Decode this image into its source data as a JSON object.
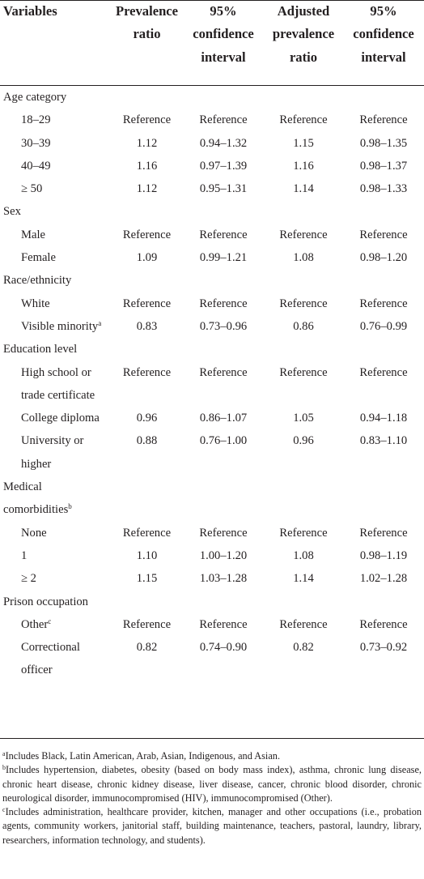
{
  "header": {
    "col0": "Variables",
    "col1": [
      "Prevalence",
      "ratio"
    ],
    "col2": [
      "95%",
      "confidence",
      "interval"
    ],
    "col3": [
      "Adjusted",
      "prevalence",
      "ratio"
    ],
    "col4": [
      "95%",
      "confidence",
      "interval"
    ]
  },
  "groups": [
    {
      "label": "Age category",
      "rows": [
        {
          "label": "18–29",
          "pr": "Reference",
          "ci": "Reference",
          "apr": "Reference",
          "aci": "Reference"
        },
        {
          "label": "30–39",
          "pr": "1.12",
          "ci": "0.94–1.32",
          "apr": "1.15",
          "aci": "0.98–1.35"
        },
        {
          "label": "40–49",
          "pr": "1.16",
          "ci": "0.97–1.39",
          "apr": "1.16",
          "aci": "0.98–1.37"
        },
        {
          "label": "≥ 50",
          "pr": "1.12",
          "ci": "0.95–1.31",
          "apr": "1.14",
          "aci": "0.98–1.33"
        }
      ]
    },
    {
      "label": "Sex",
      "rows": [
        {
          "label": "Male",
          "pr": "Reference",
          "ci": "Reference",
          "apr": "Reference",
          "aci": "Reference"
        },
        {
          "label": "Female",
          "pr": "1.09",
          "ci": "0.99–1.21",
          "apr": "1.08",
          "aci": "0.98–1.20"
        }
      ]
    },
    {
      "label": "Race/ethnicity",
      "rows": [
        {
          "label": "White",
          "pr": "Reference",
          "ci": "Reference",
          "apr": "Reference",
          "aci": "Reference"
        },
        {
          "label": "Visible minority",
          "sup": "a",
          "pr": "0.83",
          "ci": "0.73–0.96",
          "apr": "0.86",
          "aci": "0.76–0.99"
        }
      ]
    },
    {
      "label": "Education level",
      "rows": [
        {
          "label": "High school or trade certificate",
          "pr": "Reference",
          "ci": "Reference",
          "apr": "Reference",
          "aci": "Reference"
        },
        {
          "label": "College diploma",
          "pr": "0.96",
          "ci": "0.86–1.07",
          "apr": "1.05",
          "aci": "0.94–1.18"
        },
        {
          "label": "University or higher",
          "pr": "0.88",
          "ci": "0.76–1.00",
          "apr": "0.96",
          "aci": "0.83–1.10"
        }
      ]
    },
    {
      "label": "Medical comorbidities",
      "sup": "b",
      "rows": [
        {
          "label": "None",
          "pr": "Reference",
          "ci": "Reference",
          "apr": "Reference",
          "aci": "Reference"
        },
        {
          "label": "1",
          "pr": "1.10",
          "ci": "1.00–1.20",
          "apr": "1.08",
          "aci": "0.98–1.19"
        },
        {
          "label": "≥ 2",
          "pr": "1.15",
          "ci": "1.03–1.28",
          "apr": "1.14",
          "aci": "1.02–1.28"
        }
      ]
    },
    {
      "label": "Prison occupation",
      "rows": [
        {
          "label": "Other",
          "sup": "c",
          "pr": "Reference",
          "ci": "Reference",
          "apr": "Reference",
          "aci": "Reference"
        },
        {
          "label": "Correctional officer",
          "pr": "0.82",
          "ci": "0.74–0.90",
          "apr": "0.82",
          "aci": "0.73–0.92"
        }
      ]
    }
  ],
  "footnotes": [
    {
      "mark": "a",
      "text": "Includes Black, Latin American, Arab, Asian, Indigenous, and Asian."
    },
    {
      "mark": "b",
      "text": "Includes hypertension, diabetes, obesity (based on body mass index), asthma, chronic lung disease, chronic heart disease, chronic kidney disease, liver disease, cancer, chronic blood disorder, chronic neurological disorder, immunocompromised (HIV), immunocompromised (Other)."
    },
    {
      "mark": "c",
      "text": "Includes administration, healthcare provider, kitchen, manager and other occupations (i.e., probation agents, community workers, janitorial staff, building maintenance, teachers, pastoral, laundry, library, researchers, information technology, and students)."
    }
  ]
}
